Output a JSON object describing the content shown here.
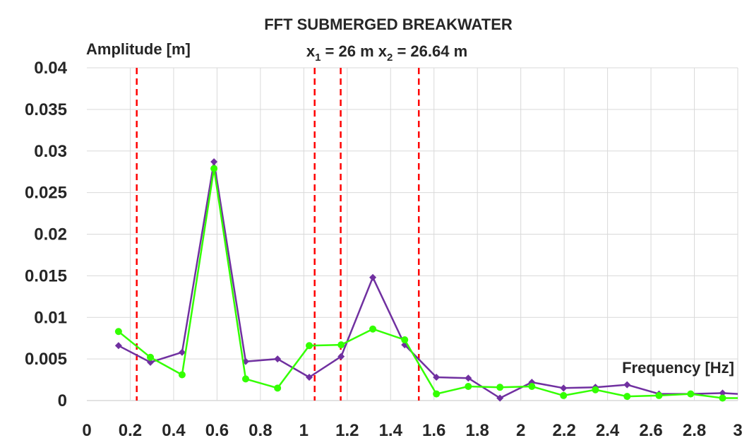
{
  "chart_data": {
    "type": "line",
    "title": "FFT  SUBMERGED BREAKWATER",
    "subtitle": {
      "x1_symbol": "x",
      "x1_sub": "1",
      "x1_value": " = 26 m ",
      "x2_symbol": "x",
      "x2_sub": "2",
      "x2_value": " = 26.64 m"
    },
    "ylabel": "Amplitude [m]",
    "xlabel": "Frequency [Hz]",
    "xlim": [
      0,
      3
    ],
    "ylim": [
      0,
      0.04
    ],
    "x_ticks": [
      "0",
      "0.2",
      "0.4",
      "0.6",
      "0.8",
      "1",
      "1.2",
      "1.4",
      "1.6",
      "1.8",
      "2",
      "2.2",
      "2.4",
      "2.6",
      "2.8",
      "3"
    ],
    "x_tick_values": [
      0,
      0.2,
      0.4,
      0.6,
      0.8,
      1,
      1.2,
      1.4,
      1.6,
      1.8,
      2,
      2.2,
      2.4,
      2.6,
      2.8,
      3
    ],
    "y_ticks": [
      "0",
      "0.005",
      "0.01",
      "0.015",
      "0.02",
      "0.025",
      "0.03",
      "0.035",
      "0.04"
    ],
    "y_tick_values": [
      0,
      0.005,
      0.01,
      0.015,
      0.02,
      0.025,
      0.03,
      0.035,
      0.04
    ],
    "grid": true,
    "legend": "none",
    "series": [
      {
        "color": "#7030a0",
        "marker": "diamond",
        "x": [
          0.146,
          0.293,
          0.439,
          0.586,
          0.732,
          0.879,
          1.025,
          1.172,
          1.318,
          1.465,
          1.611,
          1.758,
          1.904,
          2.051,
          2.197,
          2.344,
          2.49,
          2.637,
          2.783,
          2.93,
          3.0
        ],
        "y": [
          0.0066,
          0.0046,
          0.0058,
          0.0287,
          0.0047,
          0.005,
          0.0028,
          0.0053,
          0.0148,
          0.0067,
          0.0028,
          0.0027,
          0.0003,
          0.0022,
          0.0015,
          0.0016,
          0.0019,
          0.0008,
          0.0008,
          0.0009,
          0.0008
        ]
      },
      {
        "color": "#33ff00",
        "marker": "circle",
        "x": [
          0.146,
          0.293,
          0.439,
          0.586,
          0.732,
          0.879,
          1.025,
          1.172,
          1.318,
          1.465,
          1.611,
          1.758,
          1.904,
          2.051,
          2.197,
          2.344,
          2.49,
          2.637,
          2.783,
          2.93,
          3.0
        ],
        "y": [
          0.0083,
          0.0052,
          0.0031,
          0.0279,
          0.0026,
          0.0015,
          0.0066,
          0.0067,
          0.0086,
          0.0073,
          0.0008,
          0.0017,
          0.0016,
          0.0017,
          0.0006,
          0.0013,
          0.0005,
          0.0006,
          0.0008,
          0.0003,
          0.0003
        ]
      }
    ],
    "vertical_lines": {
      "color": "#ff0000",
      "style": "dashed",
      "x": [
        0.23,
        1.05,
        1.17,
        1.53
      ]
    }
  }
}
